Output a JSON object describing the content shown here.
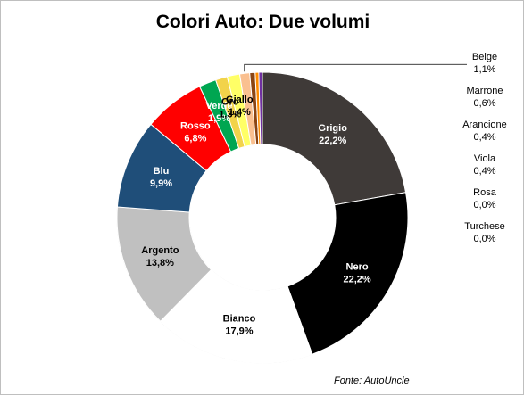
{
  "chart_data": {
    "type": "pie",
    "title": "Colori Auto: Due volumi",
    "donut": true,
    "slices": [
      {
        "label": "Grigio",
        "value": 22.2,
        "display": "22,2%",
        "color": "#3f3a38"
      },
      {
        "label": "Nero",
        "value": 22.2,
        "display": "22,2%",
        "color": "#000000"
      },
      {
        "label": "Bianco",
        "value": 17.9,
        "display": "17,9%",
        "color": "#ffffff"
      },
      {
        "label": "Argento",
        "value": 13.8,
        "display": "13,8%",
        "color": "#c0c0c0"
      },
      {
        "label": "Blu",
        "value": 9.9,
        "display": "9,9%",
        "color": "#1f4e79"
      },
      {
        "label": "Rosso",
        "value": 6.8,
        "display": "6,8%",
        "color": "#ff0000"
      },
      {
        "label": "Verde",
        "value": 1.9,
        "display": "1,9%",
        "color": "#00a651"
      },
      {
        "label": "Oro",
        "value": 1.3,
        "display": "1,3%",
        "color": "#f2d34a"
      },
      {
        "label": "Giallo",
        "value": 1.4,
        "display": "1,4%",
        "color": "#ffff66"
      },
      {
        "label": "Beige",
        "value": 1.1,
        "display": "1,1%",
        "color": "#fac090"
      },
      {
        "label": "Marrone",
        "value": 0.6,
        "display": "0,6%",
        "color": "#8b4513"
      },
      {
        "label": "Arancione",
        "value": 0.4,
        "display": "0,4%",
        "color": "#ff8c00"
      },
      {
        "label": "Viola",
        "value": 0.4,
        "display": "0,4%",
        "color": "#7030a0"
      },
      {
        "label": "Rosa",
        "value": 0.0,
        "display": "0,0%",
        "color": "#ff99cc"
      },
      {
        "label": "Turchese",
        "value": 0.0,
        "display": "0,0%",
        "color": "#00b0f0"
      }
    ],
    "source": "Fonte: AutoUncle"
  }
}
